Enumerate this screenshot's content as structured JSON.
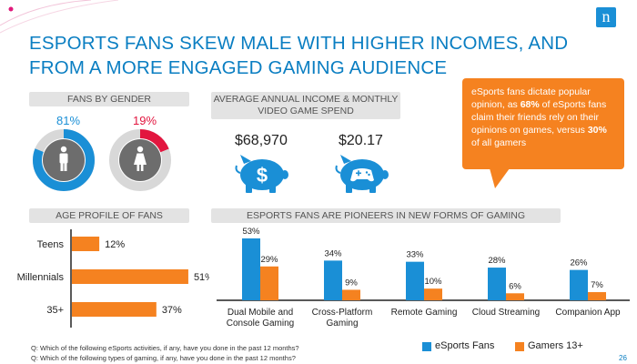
{
  "title": "ESPORTS FANS SKEW MALE WITH HIGHER INCOMES, AND FROM A MORE ENGAGED GAMING AUDIENCE",
  "gender": {
    "header": "FANS BY GENDER",
    "male_pct": "81%",
    "female_pct": "19%",
    "male_value": 81,
    "female_value": 19,
    "male_color": "#1a8fd6",
    "female_color": "#e2163f",
    "male_icon": "male-person-icon",
    "female_icon": "female-person-icon"
  },
  "income": {
    "header_line1": "AVERAGE ANNUAL INCOME & MONTHLY",
    "header_line2": "VIDEO GAME SPEND",
    "income_value": "$68,970",
    "spend_value": "$20.17",
    "income_icon": "piggy-bank-dollar-icon",
    "spend_icon": "piggy-bank-gamepad-icon"
  },
  "callout": {
    "text_before": "eSports fans dictate popular opinion, as ",
    "bold1": "68%",
    "text_middle": " of eSports fans claim their friends rely on their opinions on games, versus ",
    "bold2": "30%",
    "text_after": " of all gamers"
  },
  "age": {
    "header": "AGE PROFILE OF FANS"
  },
  "pioneers": {
    "header": "ESPORTS FANS ARE PIONEERS IN NEW FORMS OF GAMING"
  },
  "legend": {
    "series1": "eSports Fans",
    "series2": "Gamers 13+"
  },
  "footnotes": {
    "line1": "Q: Which of the following eSports activities, if any, have you done in the past 12 months?",
    "line2": "Q: Which of the following types of gaming, if any, have you done in the past 12 months?"
  },
  "page_number": "26",
  "logo_letter": "n",
  "colors": {
    "accent_blue": "#1a8fd6",
    "accent_orange": "#f58220",
    "title_blue": "#0a7ec2"
  },
  "chart_data": [
    {
      "type": "bar",
      "orientation": "horizontal",
      "categories": [
        "Teens",
        "Millennials",
        "35+"
      ],
      "values": [
        12,
        51,
        37
      ],
      "value_labels": [
        "12%",
        "51%",
        "37%"
      ],
      "color": "#f58220",
      "xlim": [
        0,
        60
      ]
    },
    {
      "type": "bar",
      "orientation": "vertical",
      "categories": [
        "Dual Mobile and Console Gaming",
        "Cross-Platform Gaming",
        "Remote Gaming",
        "Cloud Streaming",
        "Companion App"
      ],
      "category_lines": [
        [
          "Dual Mobile and",
          "Console Gaming"
        ],
        [
          "Cross-Platform",
          "Gaming"
        ],
        [
          "Remote Gaming"
        ],
        [
          "Cloud Streaming"
        ],
        [
          "Companion App"
        ]
      ],
      "series": [
        {
          "name": "eSports Fans",
          "values": [
            53,
            34,
            33,
            28,
            26
          ],
          "labels": [
            "53%",
            "34%",
            "33%",
            "28%",
            "26%"
          ],
          "color": "#1a8fd6"
        },
        {
          "name": "Gamers 13+",
          "values": [
            29,
            9,
            10,
            6,
            7
          ],
          "labels": [
            "29%",
            "9%",
            "10%",
            "6%",
            "7%"
          ],
          "color": "#f58220"
        }
      ],
      "ylim": [
        0,
        60
      ]
    }
  ]
}
